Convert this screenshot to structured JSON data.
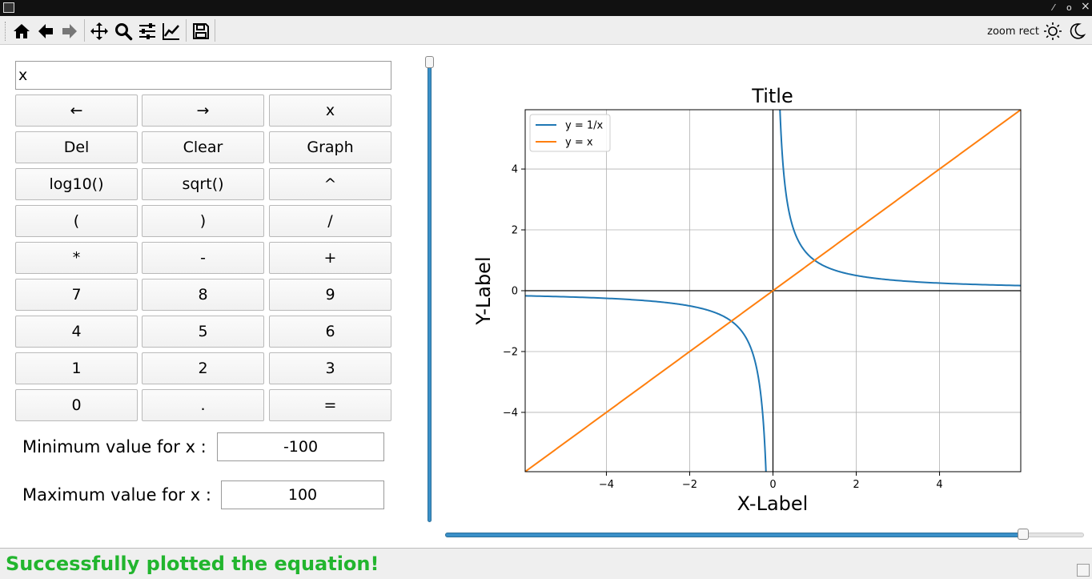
{
  "window": {
    "close_glyph": "×",
    "maximize_glyph": "o",
    "minimize_glyph": "⁄"
  },
  "toolbar": {
    "buttons": [
      {
        "name": "home",
        "icon": "home-icon"
      },
      {
        "name": "back",
        "icon": "arrow-left-icon"
      },
      {
        "name": "forward",
        "icon": "arrow-right-icon"
      },
      {
        "name": "pan",
        "icon": "move-icon"
      },
      {
        "name": "zoom",
        "icon": "magnifier-icon"
      },
      {
        "name": "configure-subplots",
        "icon": "sliders-icon"
      },
      {
        "name": "edit-axes",
        "icon": "line-chart-icon"
      },
      {
        "name": "save",
        "icon": "floppy-disk-icon"
      }
    ],
    "mode_text": "zoom rect",
    "theme_light_icon": "sun-icon",
    "theme_dark_icon": "moon-icon"
  },
  "calculator": {
    "expression": "x",
    "keys": [
      [
        "←",
        "→",
        "x"
      ],
      [
        "Del",
        "Clear",
        "Graph"
      ],
      [
        "log10()",
        "sqrt()",
        "^"
      ],
      [
        "(",
        ")",
        "/"
      ],
      [
        "*",
        "-",
        "+"
      ],
      [
        "7",
        "8",
        "9"
      ],
      [
        "4",
        "5",
        "6"
      ],
      [
        "1",
        "2",
        "3"
      ],
      [
        "0",
        ".",
        "="
      ]
    ],
    "min_label": "Minimum value for x :",
    "min_value": "-100",
    "max_label": "Maximum value for x :",
    "max_value": "100"
  },
  "status": {
    "message": "Successfully plotted the equation!",
    "color": "#22b52e"
  },
  "chart_data": {
    "type": "line",
    "title": "Title",
    "xlabel": "X-Label",
    "ylabel": "Y-Label",
    "xlim": [
      -5.95,
      5.95
    ],
    "ylim": [
      -5.95,
      5.95
    ],
    "xticks": [
      -4,
      -2,
      0,
      2,
      4
    ],
    "yticks": [
      -4,
      -2,
      0,
      2,
      4
    ],
    "grid": true,
    "legend": "upper-left",
    "series": [
      {
        "name": "y = 1/x",
        "color": "#1f77b4",
        "function": "reciprocal"
      },
      {
        "name": "y = x",
        "color": "#ff7f0e",
        "function": "identity"
      }
    ],
    "zoom_slider_fraction": 0.905,
    "vertical_slider_fraction": 1.0
  }
}
